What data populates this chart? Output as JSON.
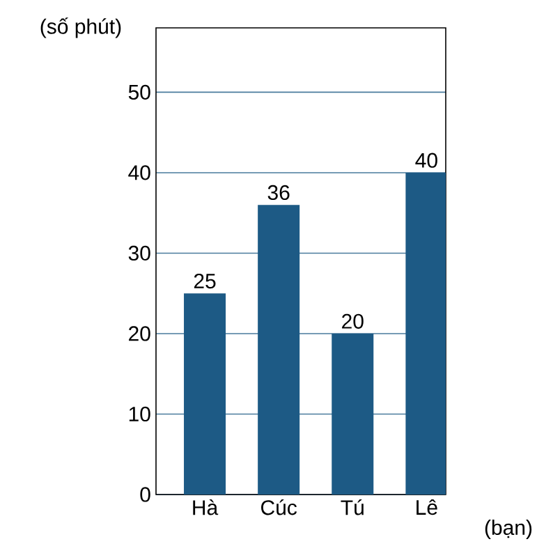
{
  "chart_data": {
    "type": "bar",
    "ylabel": "(số phút)",
    "xlabel": "(bạn)",
    "categories": [
      "Hà",
      "Cúc",
      "Tú",
      "Lê"
    ],
    "values": [
      25,
      36,
      20,
      40
    ],
    "color": "#1d5a85",
    "ylim": [
      0,
      58
    ],
    "yticks": [
      0,
      10,
      20,
      30,
      40,
      50
    ],
    "grid": "y",
    "data_labels": true
  }
}
